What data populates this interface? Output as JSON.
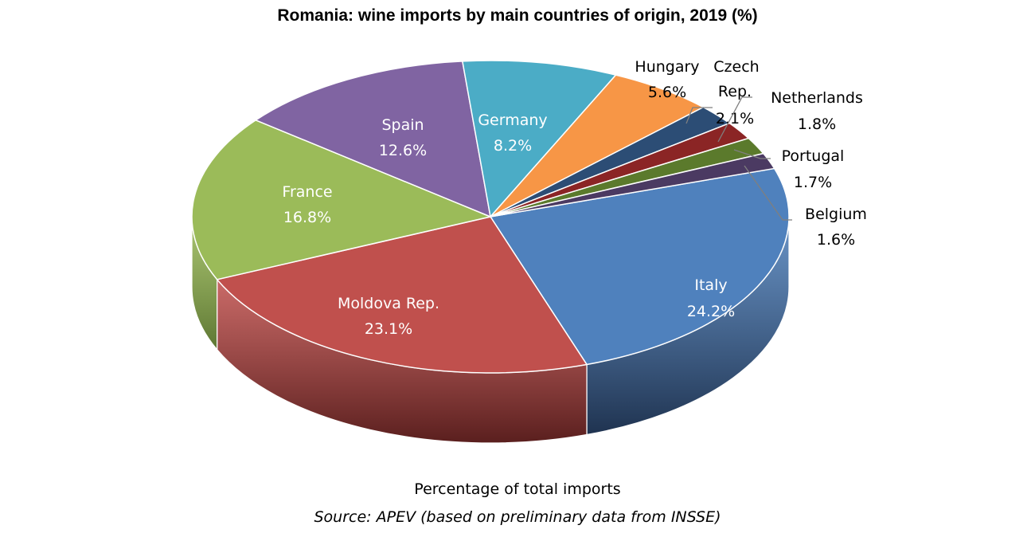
{
  "chart_data": {
    "type": "pie",
    "title": "Romania: wine imports by main countries of origin, 2019 (%)",
    "subtitle": "Percentage of total imports",
    "source": "Source: APEV (based on preliminary data from INSSE)",
    "slices": [
      {
        "name": "Italy",
        "value": 24.2,
        "label": "24.2%",
        "color": "#4F81BD",
        "side": "#1F3350",
        "label_color": "#ffffff"
      },
      {
        "name": "Moldova Rep.",
        "value": 23.1,
        "label": "23.1%",
        "color": "#C0504D",
        "side": "#5A1F1E",
        "label_color": "#ffffff"
      },
      {
        "name": "France",
        "value": 16.8,
        "label": "16.8%",
        "color": "#9BBB59",
        "side": "#5E7733",
        "label_color": "#ffffff"
      },
      {
        "name": "Spain",
        "value": 12.6,
        "label": "12.6%",
        "color": "#8064A2",
        "side": "#4A3A5E",
        "label_color": "#ffffff"
      },
      {
        "name": "Germany",
        "value": 8.2,
        "label": "8.2%",
        "color": "#4BACC6",
        "side": "#2A6575",
        "label_color": "#ffffff"
      },
      {
        "name": "Hungary",
        "value": 5.6,
        "label": "5.6%",
        "color": "#F79646",
        "side": "#8E5425",
        "label_color": "#000000"
      },
      {
        "name": "Czech Rep.",
        "value": 2.1,
        "label": "2.1%",
        "color": "#2C4D75",
        "side": "#15263A",
        "label_color": "#000000"
      },
      {
        "name": "Netherlands",
        "value": 1.8,
        "label": "1.8%",
        "color": "#8B2525",
        "side": "#451212",
        "label_color": "#000000"
      },
      {
        "name": "Portugal",
        "value": 1.7,
        "label": "1.7%",
        "color": "#5B7A2C",
        "side": "#2D3D16",
        "label_color": "#000000"
      },
      {
        "name": "Belgium",
        "value": 1.6,
        "label": "1.6%",
        "color": "#4B3A62",
        "side": "#251D31",
        "label_color": "#000000"
      }
    ]
  }
}
